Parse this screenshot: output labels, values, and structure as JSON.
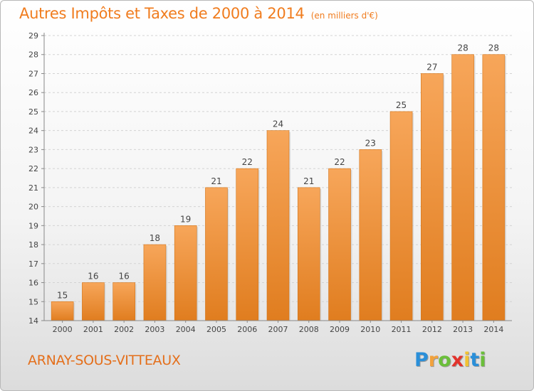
{
  "header": {
    "title": "Autres Impôts et Taxes de 2000 à 2014",
    "unit": "(en milliers d'€)"
  },
  "commune": "ARNAY-SOUS-VITTEAUX",
  "logo": {
    "text": "Proxiti",
    "letters": [
      "P",
      "r",
      "o",
      "x",
      "i",
      "t",
      "i"
    ],
    "colors": [
      "#2a8fd9",
      "#f2a23c",
      "#6bbf3a",
      "#e2332c",
      "#f2c232",
      "#2a8fd9",
      "#6bbf3a"
    ]
  },
  "colors": {
    "bar_light": "#f7a65a",
    "bar_dark": "#e07d1f",
    "title": "#f07c1e"
  },
  "chart_data": {
    "type": "bar",
    "categories": [
      "2000",
      "2001",
      "2002",
      "2003",
      "2004",
      "2005",
      "2006",
      "2007",
      "2008",
      "2009",
      "2010",
      "2011",
      "2012",
      "2013",
      "2014"
    ],
    "values": [
      15,
      16,
      16,
      18,
      19,
      21,
      22,
      24,
      21,
      22,
      23,
      25,
      27,
      28,
      28
    ],
    "data_labels": [
      "15",
      "16",
      "16",
      "18",
      "19",
      "21",
      "22",
      "24",
      "21",
      "22",
      "23",
      "25",
      "27",
      "28",
      "28"
    ],
    "title": "Autres Impôts et Taxes de 2000 à 2014",
    "xlabel": "",
    "ylabel": "",
    "ylim": [
      14,
      29
    ],
    "yticks": [
      14,
      15,
      16,
      17,
      18,
      19,
      20,
      21,
      22,
      23,
      24,
      25,
      26,
      27,
      28,
      29
    ],
    "grid": true
  }
}
